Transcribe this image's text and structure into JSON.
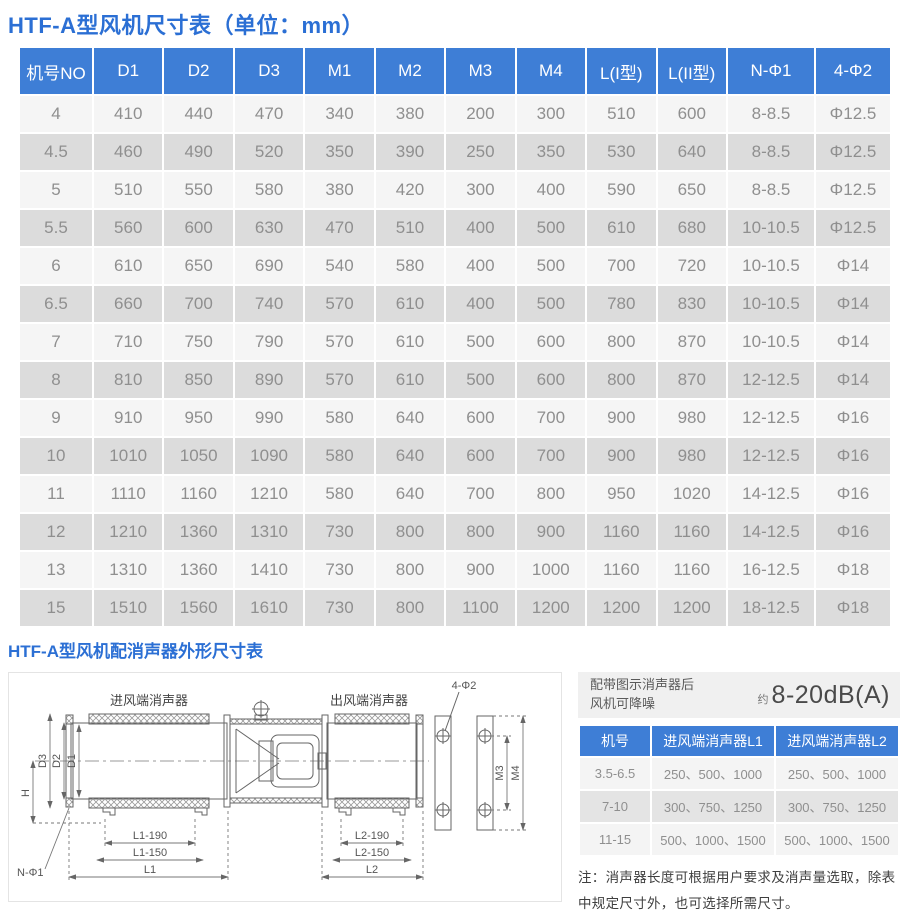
{
  "page": {
    "title": "HTF-A型风机尺寸表（单位：mm）",
    "section2_title": "HTF-A型风机配消声器外形尺寸表"
  },
  "colors": {
    "accent_blue": "#3e7ed6",
    "title_blue": "#2b6fd4",
    "row_light": "#f5f5f5",
    "row_dark": "#dcdcdc",
    "cell_text": "#8f8f8f"
  },
  "main_table": {
    "columns": [
      "机号NO",
      "D1",
      "D2",
      "D3",
      "M1",
      "M2",
      "M3",
      "M4",
      "L(I型)",
      "L(II型)",
      "N-Φ1",
      "4-Φ2"
    ],
    "rows": [
      [
        "4",
        "410",
        "440",
        "470",
        "340",
        "380",
        "200",
        "300",
        "510",
        "600",
        "8-8.5",
        "Φ12.5"
      ],
      [
        "4.5",
        "460",
        "490",
        "520",
        "350",
        "390",
        "250",
        "350",
        "530",
        "640",
        "8-8.5",
        "Φ12.5"
      ],
      [
        "5",
        "510",
        "550",
        "580",
        "380",
        "420",
        "300",
        "400",
        "590",
        "650",
        "8-8.5",
        "Φ12.5"
      ],
      [
        "5.5",
        "560",
        "600",
        "630",
        "470",
        "510",
        "400",
        "500",
        "610",
        "680",
        "10-10.5",
        "Φ12.5"
      ],
      [
        "6",
        "610",
        "650",
        "690",
        "540",
        "580",
        "400",
        "500",
        "700",
        "720",
        "10-10.5",
        "Φ14"
      ],
      [
        "6.5",
        "660",
        "700",
        "740",
        "570",
        "610",
        "400",
        "500",
        "780",
        "830",
        "10-10.5",
        "Φ14"
      ],
      [
        "7",
        "710",
        "750",
        "790",
        "570",
        "610",
        "500",
        "600",
        "800",
        "870",
        "10-10.5",
        "Φ14"
      ],
      [
        "8",
        "810",
        "850",
        "890",
        "570",
        "610",
        "500",
        "600",
        "800",
        "870",
        "12-12.5",
        "Φ14"
      ],
      [
        "9",
        "910",
        "950",
        "990",
        "580",
        "640",
        "600",
        "700",
        "900",
        "980",
        "12-12.5",
        "Φ16"
      ],
      [
        "10",
        "1010",
        "1050",
        "1090",
        "580",
        "640",
        "600",
        "700",
        "900",
        "980",
        "12-12.5",
        "Φ16"
      ],
      [
        "11",
        "1110",
        "1160",
        "1210",
        "580",
        "640",
        "700",
        "800",
        "950",
        "1020",
        "14-12.5",
        "Φ16"
      ],
      [
        "12",
        "1210",
        "1360",
        "1310",
        "730",
        "800",
        "800",
        "900",
        "1160",
        "1160",
        "14-12.5",
        "Φ16"
      ],
      [
        "13",
        "1310",
        "1360",
        "1410",
        "730",
        "800",
        "900",
        "1000",
        "1160",
        "1160",
        "16-12.5",
        "Φ18"
      ],
      [
        "15",
        "1510",
        "1560",
        "1610",
        "730",
        "800",
        "1100",
        "1200",
        "1200",
        "1200",
        "18-12.5",
        "Φ18"
      ]
    ]
  },
  "noise_panel": {
    "caption_line1": "配带图示消声器后",
    "caption_line2": "风机可降噪",
    "approx_prefix": "约",
    "value": "8-20dB(A)"
  },
  "silencer_table": {
    "columns": [
      "机号",
      "进风端消声器L1",
      "进风端消声器L2"
    ],
    "rows": [
      [
        "3.5-6.5",
        "250、500、1000",
        "250、500、1000"
      ],
      [
        "7-10",
        "300、750、1250",
        "300、750、1250"
      ],
      [
        "11-15",
        "500、1000、1500",
        "500、1000、1500"
      ]
    ]
  },
  "note": "注：消声器长度可根据用户要求及消声量选取，除表中规定尺寸外，也可选择所需尺寸。",
  "diagram": {
    "inlet_label": "进风端消声器",
    "outlet_label": "出风端消声器",
    "holes_label": "4-Φ2",
    "dim_d1": "D1",
    "dim_d2": "D2",
    "dim_d3": "D3",
    "dim_h": "H",
    "dim_n_phi1": "N-Φ1",
    "dim_l1_190": "L1-190",
    "dim_l1_150": "L1-150",
    "dim_l1": "L1",
    "dim_l2_190": "L2-190",
    "dim_l2_150": "L2-150",
    "dim_l2": "L2",
    "dim_m3": "M3",
    "dim_m4": "M4"
  }
}
